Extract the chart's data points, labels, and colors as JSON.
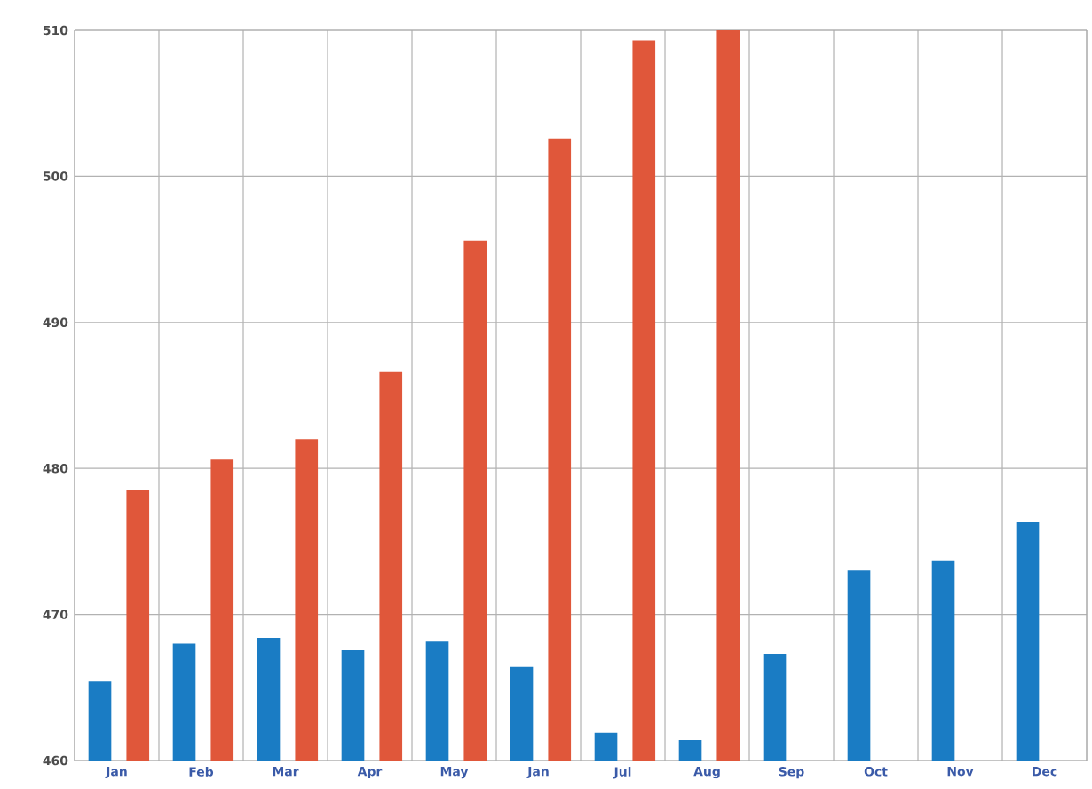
{
  "chart_data": {
    "type": "bar",
    "categories": [
      "Jan",
      "Feb",
      "Mar",
      "Apr",
      "May",
      "Jan",
      "Jul",
      "Aug",
      "Sep",
      "Oct",
      "Nov",
      "Dec"
    ],
    "series": [
      {
        "color": "#1a7cc4",
        "values": [
          465.4,
          468.0,
          468.4,
          467.6,
          468.2,
          466.4,
          461.9,
          461.4,
          467.3,
          473.0,
          473.7,
          476.3
        ]
      },
      {
        "color": "#e0573a",
        "values": [
          478.5,
          480.6,
          482.0,
          486.6,
          495.6,
          502.6,
          509.3,
          510,
          null,
          null,
          null,
          null
        ]
      }
    ],
    "ylim": [
      460,
      510
    ],
    "yticks": [
      460,
      470,
      480,
      490,
      500,
      510
    ],
    "grid": true
  }
}
